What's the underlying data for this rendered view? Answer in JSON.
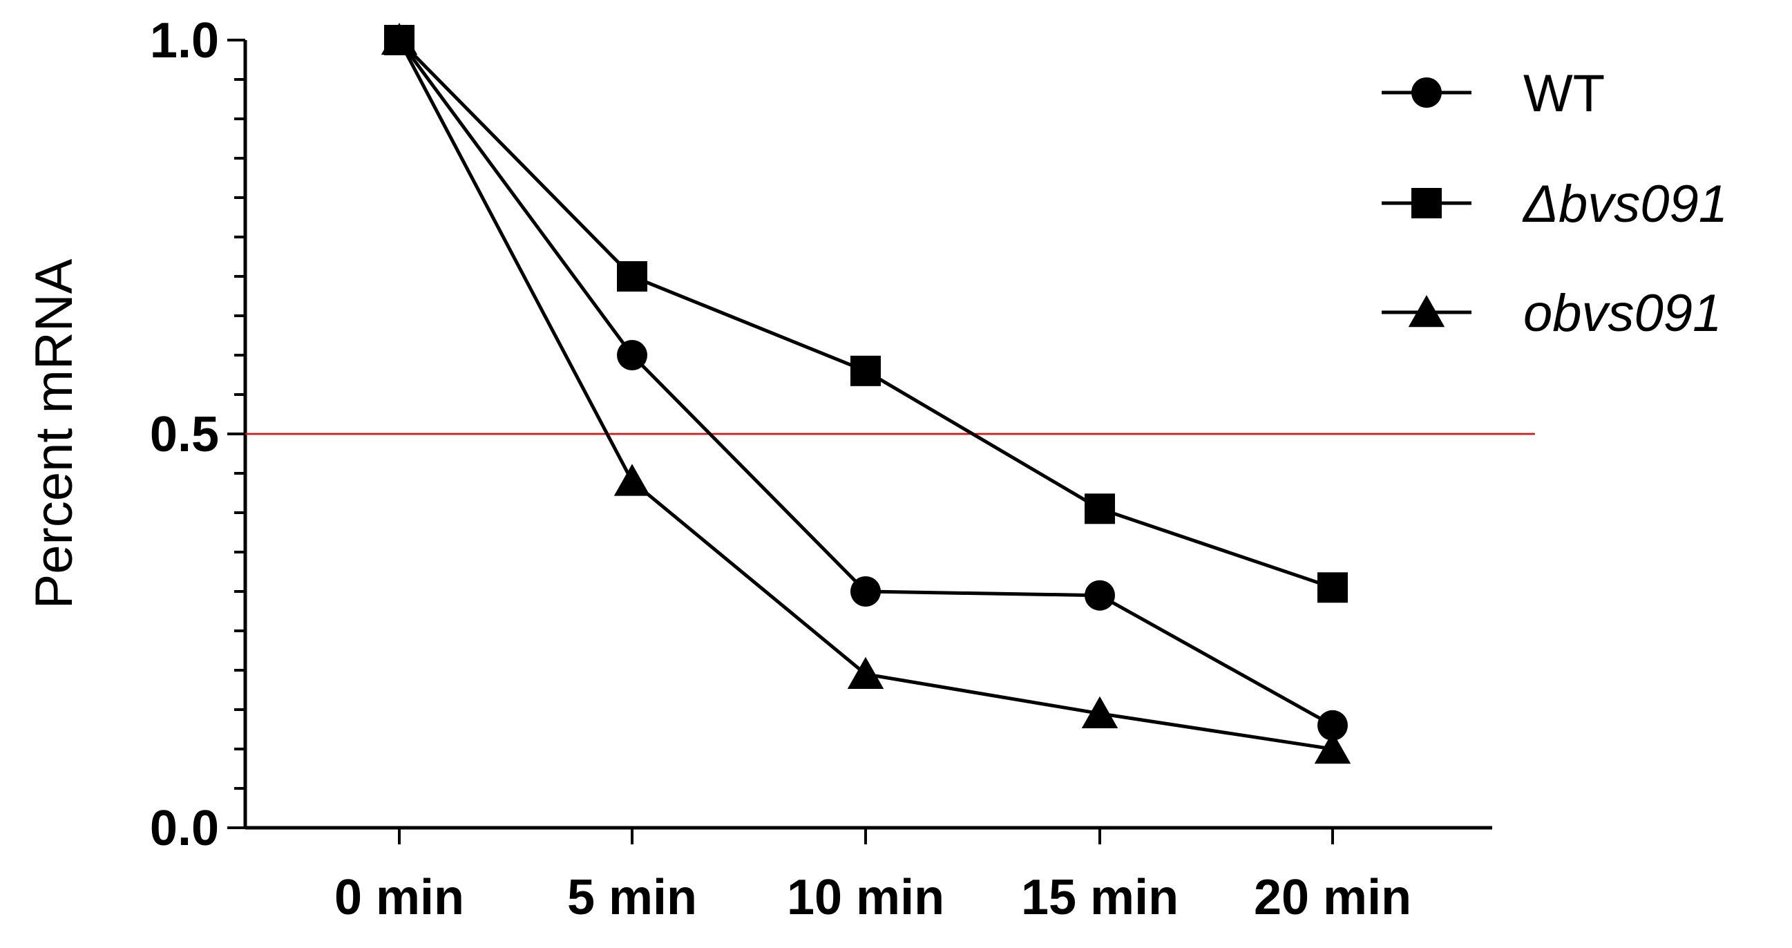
{
  "chart_data": {
    "type": "line",
    "title": "",
    "xlabel": "",
    "ylabel": "Percent mRNA",
    "categories": [
      "0 min",
      "5 min",
      "10 min",
      "15 min",
      "20 min"
    ],
    "ylim": [
      0,
      1.0
    ],
    "yticks_labeled": [
      "0.0",
      "0.5",
      "1.0"
    ],
    "ytick_minor_step": 0.05,
    "reference_line": {
      "y": 0.5,
      "color": "#ff0000"
    },
    "legend_position": "top-right",
    "series": [
      {
        "name": "WT",
        "marker": "circle",
        "italic": false,
        "values": [
          1.0,
          0.6,
          0.3,
          0.295,
          0.13
        ]
      },
      {
        "name": "Δbvs091",
        "marker": "square",
        "italic": true,
        "values": [
          1.0,
          0.7,
          0.58,
          0.405,
          0.305
        ]
      },
      {
        "name": "obvs091",
        "marker": "triangle",
        "italic": true,
        "values": [
          1.0,
          0.44,
          0.195,
          0.145,
          0.1
        ]
      }
    ],
    "line_color": "#000000"
  }
}
